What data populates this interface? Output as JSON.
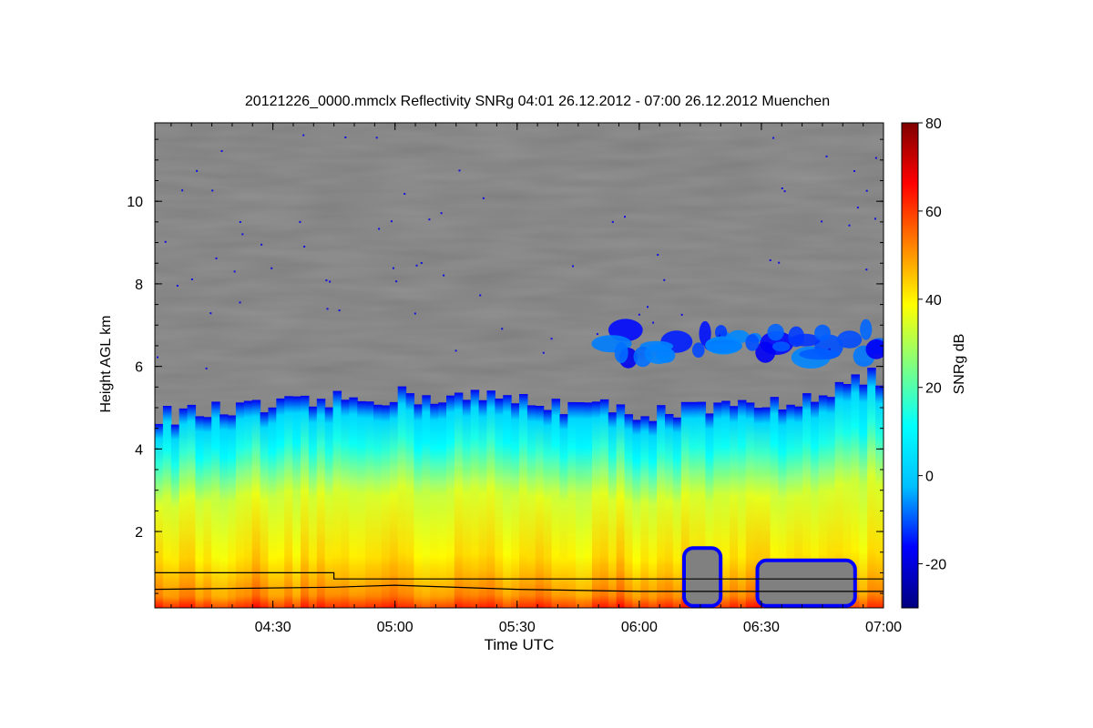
{
  "chart_data": {
    "type": "heatmap",
    "title": "20121226_0000.mmclx Reflectivity SNRg   04:01 26.12.2012 - 07:00 26.12.2012 Muenchen",
    "xlabel": "Time UTC",
    "ylabel": "Height AGL km",
    "colorbar_label": "SNRg dB",
    "x_range": [
      "04:01",
      "07:00"
    ],
    "x_ticks": [
      "04:30",
      "05:00",
      "05:30",
      "06:00",
      "06:30",
      "07:00"
    ],
    "y_range_km": [
      0.15,
      11.9
    ],
    "y_ticks": [
      2,
      4,
      6,
      8,
      10
    ],
    "colorbar_range_db": [
      -30,
      80
    ],
    "colorbar_ticks": [
      -20,
      0,
      20,
      40,
      60,
      80
    ],
    "colormap": [
      "#00007f",
      "#0000ff",
      "#00bfff",
      "#00ffff",
      "#80ff80",
      "#ffff00",
      "#ff8000",
      "#ff0000",
      "#7f0000"
    ],
    "background_color": "#808080",
    "echo_top_km": [
      {
        "time": "04:01",
        "top": 4.8
      },
      {
        "time": "04:30",
        "top": 5.0
      },
      {
        "time": "05:00",
        "top": 5.3
      },
      {
        "time": "05:30",
        "top": 5.2
      },
      {
        "time": "06:00",
        "top": 4.9
      },
      {
        "time": "06:30",
        "top": 5.0
      },
      {
        "time": "07:00",
        "top": 5.8
      }
    ],
    "upper_layer": {
      "time_start": "05:53",
      "time_end": "07:00",
      "height_km": [
        6.0,
        7.1
      ]
    },
    "clear_gaps": [
      {
        "time_start": "06:11",
        "time_end": "06:20",
        "height_km": [
          0.2,
          1.6
        ]
      },
      {
        "time_start": "06:29",
        "time_end": "06:53",
        "height_km": [
          0.2,
          1.3
        ]
      }
    ],
    "lines": [
      {
        "points": [
          [
            "04:01",
            1.0
          ],
          [
            "04:45",
            1.0
          ],
          [
            "04:45",
            0.85
          ],
          [
            "07:00",
            0.85
          ]
        ]
      },
      {
        "points": [
          [
            "04:01",
            0.6
          ],
          [
            "04:45",
            0.65
          ],
          [
            "05:00",
            0.7
          ],
          [
            "05:30",
            0.6
          ],
          [
            "06:00",
            0.55
          ],
          [
            "06:30",
            0.55
          ],
          [
            "07:00",
            0.55
          ]
        ]
      }
    ]
  }
}
